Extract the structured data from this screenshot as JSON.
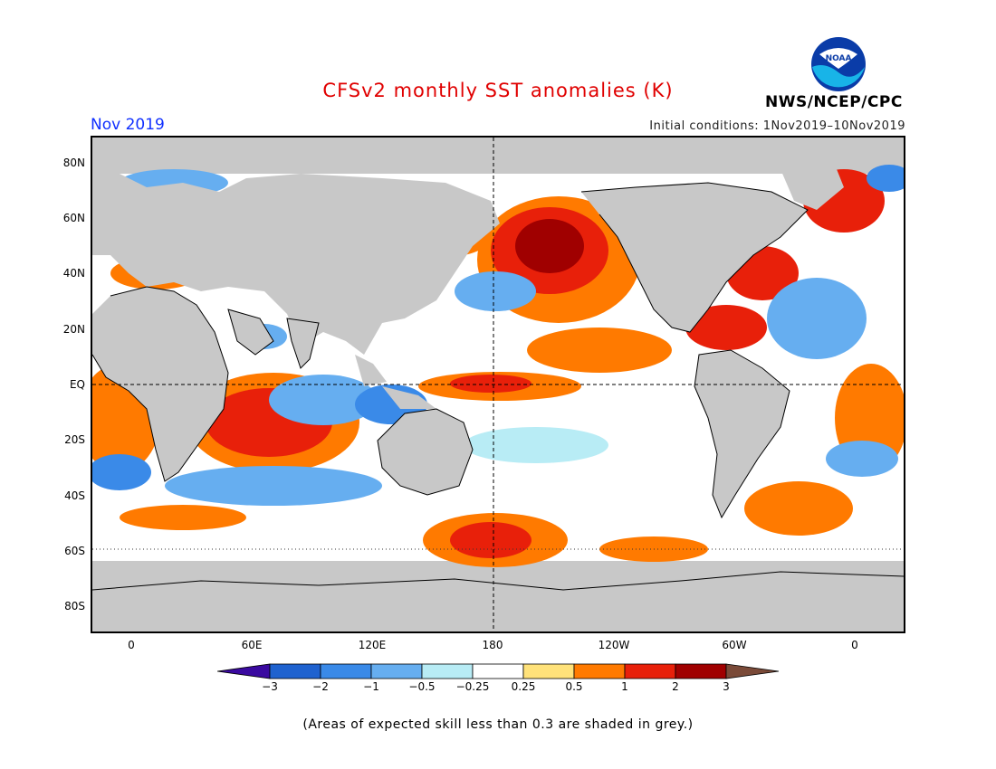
{
  "header": {
    "title": "CFSv2 monthly SST anomalies (K)",
    "month": "Nov 2019",
    "initial_conditions": "Initial conditions: 1Nov2019–10Nov2019",
    "agency": "NWS/NCEP/CPC",
    "logo_text": "NOAA"
  },
  "map": {
    "lat_labels": [
      "80N",
      "60N",
      "40N",
      "20N",
      "EQ",
      "20S",
      "40S",
      "60S",
      "80S"
    ],
    "lon_labels": [
      "0",
      "60E",
      "120E",
      "180",
      "120W",
      "60W",
      "0"
    ],
    "land_color": "#c8c8c8",
    "ocean_regions": [
      {
        "region": "Northeast Pacific blob",
        "level": 3
      },
      {
        "region": "Western Indian Ocean",
        "level": 2
      },
      {
        "region": "Eastern Indian Ocean",
        "level": -1
      },
      {
        "region": "Equatorial Central Pacific",
        "level": 1
      },
      {
        "region": "South Atlantic",
        "level": 1
      },
      {
        "region": "Southern Ocean South Pacific",
        "level": 1
      }
    ]
  },
  "colorbar": {
    "labels": [
      "−3",
      "−2",
      "−1",
      "−0.5",
      "−0.25",
      "0.25",
      "0.5",
      "1",
      "2",
      "3"
    ],
    "colors": [
      "#3a0aa0",
      "#1f62cf",
      "#3a8ae8",
      "#66aef0",
      "#b8ecf5",
      "#ffffff",
      "#ffe27a",
      "#ff7a00",
      "#e8200a",
      "#a00000",
      "#7a4a38"
    ]
  },
  "footnote": "(Areas of expected skill less than 0.3 are shaded in grey.)"
}
